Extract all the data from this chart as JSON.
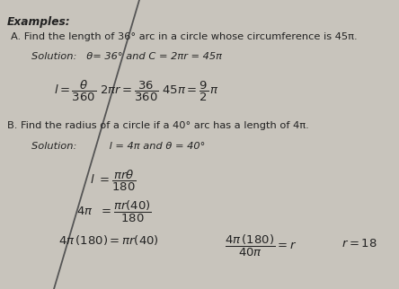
{
  "bg_color": "#c8c4bc",
  "text_color": "#222222",
  "title": "Examples:",
  "line_A": "A. Find the length of 36° arc in a circle whose circumference is 45π.",
  "sol_A_cond": "Solution:   θ= 36° and C = 2πr = 45π",
  "line_B": "B. Find the radius of a circle if a 40° arc has a length of 4π.",
  "sol_B_cond": "Solution:          l = 4π and θ = 40°",
  "diagonal_color": "#555555",
  "fs_base": 8.2,
  "fs_title": 8.8,
  "fs_math": 8.5
}
